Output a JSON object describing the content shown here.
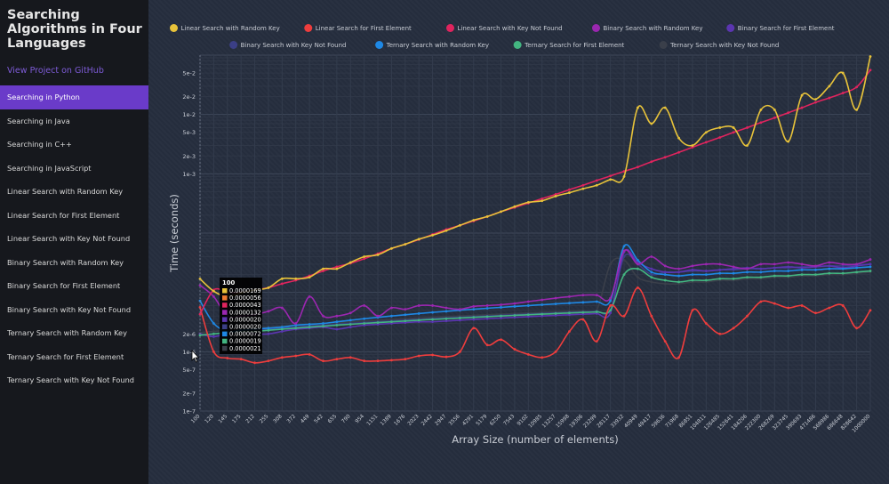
{
  "sidebar": {
    "title": "Searching Algorithms in Four Languages",
    "github_link": "View Project on GitHub",
    "items": [
      {
        "label": "Searching in Python",
        "active": true
      },
      {
        "label": "Searching in Java"
      },
      {
        "label": "Searching in C++"
      },
      {
        "label": "Searching in JavaScript"
      },
      {
        "label": "Linear Search with Random Key"
      },
      {
        "label": "Linear Search for First Element"
      },
      {
        "label": "Linear Search with Key Not Found"
      },
      {
        "label": "Binary Search with Random Key"
      },
      {
        "label": "Binary Search for First Element"
      },
      {
        "label": "Binary Search with Key Not Found"
      },
      {
        "label": "Ternary Search with Random Key"
      },
      {
        "label": "Ternary Search for First Element"
      },
      {
        "label": "Ternary Search with Key Not Found"
      }
    ]
  },
  "chart_data": {
    "type": "line",
    "xlabel": "Array Size (number of elements)",
    "ylabel": "Time (seconds)",
    "y_scale": "log",
    "ylim": [
      1e-07,
      0.1
    ],
    "grid": true,
    "legend_position": "top",
    "categories": [
      "100",
      "120",
      "145",
      "175",
      "212",
      "255",
      "308",
      "372",
      "449",
      "542",
      "655",
      "790",
      "954",
      "1151",
      "1389",
      "1676",
      "2023",
      "2442",
      "2947",
      "3556",
      "4291",
      "5179",
      "6250",
      "7543",
      "9102",
      "10985",
      "13257",
      "15998",
      "19306",
      "23299",
      "28117",
      "33932",
      "40949",
      "49417",
      "59636",
      "71968",
      "86851",
      "104811",
      "126485",
      "152641",
      "184206",
      "222300",
      "268269",
      "323745",
      "390693",
      "471486",
      "568986",
      "686648",
      "828642",
      "1000000"
    ],
    "x_ticks": [
      "100",
      "120",
      "145",
      "175",
      "212",
      "255",
      "308",
      "372",
      "449",
      "542",
      "655",
      "790",
      "954",
      "1151",
      "1389",
      "1676",
      "2023",
      "2442",
      "2947",
      "3556",
      "4291",
      "5179",
      "6250",
      "7543",
      "9102",
      "10985",
      "13257",
      "15998",
      "19306",
      "23299",
      "28117",
      "33932",
      "40949",
      "49417",
      "59636",
      "71968",
      "86851",
      "104811",
      "126485",
      "152641",
      "184206",
      "222300",
      "268269",
      "323745",
      "390693",
      "471486",
      "568986",
      "686648",
      "828642",
      "1000000"
    ],
    "y_ticks": [
      {
        "value": 1e-07,
        "label": "1e-7"
      },
      {
        "value": 2e-07,
        "label": "2e-7"
      },
      {
        "value": 5e-07,
        "label": "5e-7"
      },
      {
        "value": 1e-06,
        "label": "1e-6"
      },
      {
        "value": 2e-06,
        "label": "2e-6"
      },
      {
        "value": 0.001,
        "label": "1e-3"
      },
      {
        "value": 0.002,
        "label": "2e-3"
      },
      {
        "value": 0.005,
        "label": "5e-3"
      },
      {
        "value": 0.01,
        "label": "1e-2"
      },
      {
        "value": 0.02,
        "label": "2e-2"
      },
      {
        "value": 0.05,
        "label": "5e-2"
      }
    ],
    "series": [
      {
        "name": "Linear Search with Random Key",
        "color": "#e8c33a",
        "values": [
          1.69e-05,
          1.05e-05,
          8.5e-06,
          9.8e-06,
          1.1e-05,
          1.2e-05,
          1.7e-05,
          1.7e-05,
          1.8e-05,
          2.5e-05,
          2.5e-05,
          3.2e-05,
          4e-05,
          4.3e-05,
          5.5e-05,
          6.5e-05,
          7.9e-05,
          9.2e-05,
          0.00011,
          0.000135,
          0.000165,
          0.00019,
          0.00023,
          0.00028,
          0.00033,
          0.00035,
          0.00042,
          0.00048,
          0.00056,
          0.00064,
          0.0008,
          0.0009,
          0.013,
          0.007,
          0.013,
          0.004,
          0.003,
          0.005,
          0.006,
          0.006,
          0.003,
          0.012,
          0.012,
          0.0035,
          0.021,
          0.018,
          0.03,
          0.05,
          0.012,
          0.095
        ]
      },
      {
        "name": "Linear Search for First Element",
        "color": "#ee3d3d",
        "values": [
          5.6e-06,
          1e-06,
          7.8e-07,
          7.5e-07,
          6.5e-07,
          7e-07,
          8e-07,
          8.5e-07,
          9e-07,
          7e-07,
          7.5e-07,
          8e-07,
          7e-07,
          7e-07,
          7.2e-07,
          7.5e-07,
          8.5e-07,
          8.8e-07,
          8.2e-07,
          1e-06,
          2.5e-06,
          1.3e-06,
          1.6e-06,
          1.1e-06,
          9e-07,
          8e-07,
          1e-06,
          2.2e-06,
          3.5e-06,
          1.5e-06,
          6e-06,
          4e-06,
          1.2e-05,
          4e-06,
          1.5e-06,
          8e-07,
          5e-06,
          3e-06,
          2e-06,
          2.5e-06,
          4e-06,
          7e-06,
          6.5e-06,
          5.5e-06,
          6e-06,
          4.5e-06,
          5.5e-06,
          6e-06,
          2.5e-06,
          5e-06
        ]
      },
      {
        "name": "Linear Search with Key Not Found",
        "color": "#e0245e",
        "values": [
          4.3e-06,
          1.1e-05,
          1e-05,
          1e-05,
          1.1e-05,
          1.2e-05,
          1.4e-05,
          1.6e-05,
          1.9e-05,
          2.3e-05,
          2.7e-05,
          3.1e-05,
          3.7e-05,
          4.5e-05,
          5.5e-05,
          6.5e-05,
          7.8e-05,
          9.5e-05,
          0.000115,
          0.000135,
          0.00016,
          0.00019,
          0.00023,
          0.00027,
          0.00032,
          0.00038,
          0.00045,
          0.00054,
          0.00064,
          0.00077,
          0.00092,
          0.0011,
          0.0013,
          0.0016,
          0.0019,
          0.0023,
          0.0028,
          0.0034,
          0.0041,
          0.005,
          0.006,
          0.0073,
          0.0088,
          0.0107,
          0.013,
          0.016,
          0.019,
          0.023,
          0.029,
          0.056
        ]
      },
      {
        "name": "Binary Search with Random Key",
        "color": "#9b27b0",
        "values": [
          1.32e-05,
          8.5e-06,
          4e-06,
          4e-06,
          4.2e-06,
          4.8e-06,
          5.5e-06,
          3e-06,
          8.5e-06,
          4e-06,
          4e-06,
          4.5e-06,
          6e-06,
          4e-06,
          5.5e-06,
          5.2e-06,
          6e-06,
          6e-06,
          5.5e-06,
          5.2e-06,
          5.8e-06,
          6e-06,
          6.2e-06,
          6.5e-06,
          7e-06,
          7.5e-06,
          8e-06,
          8.5e-06,
          9e-06,
          9e-06,
          8e-06,
          5e-05,
          3e-05,
          4e-05,
          2.8e-05,
          2.5e-05,
          2.8e-05,
          3e-05,
          3e-05,
          2.7e-05,
          2.5e-05,
          3e-05,
          3e-05,
          3.2e-05,
          3e-05,
          2.8e-05,
          3.2e-05,
          3e-05,
          3e-05,
          3.6e-05
        ]
      },
      {
        "name": "Binary Search for First Element",
        "color": "#5b35b0",
        "values": [
          2e-06,
          1.8e-06,
          2e-06,
          2.2e-06,
          2e-06,
          2e-06,
          2.2e-06,
          2.4e-06,
          2.5e-06,
          2.6e-06,
          2.4e-06,
          2.6e-06,
          2.8e-06,
          2.9e-06,
          3e-06,
          3.1e-06,
          3.2e-06,
          3.2e-06,
          3.3e-06,
          3.4e-06,
          3.5e-06,
          3.6e-06,
          3.7e-06,
          3.8e-06,
          3.9e-06,
          4e-06,
          4.1e-06,
          4.2e-06,
          4.3e-06,
          4.4e-06,
          4.5e-06,
          4.8e-05,
          3.2e-05,
          2.5e-05,
          2.2e-05,
          2.2e-05,
          2.4e-05,
          2.3e-05,
          2.4e-05,
          2.5e-05,
          2.6e-05,
          2.5e-05,
          2.6e-05,
          2.7e-05,
          2.6e-05,
          2.7e-05,
          2.8e-05,
          2.6e-05,
          2.8e-05,
          3e-05
        ]
      },
      {
        "name": "Binary Search with Key Not Found",
        "color": "#3b3f86",
        "values": [
          2e-06,
          1.8e-06,
          2.1e-06,
          2.2e-06,
          2.3e-06,
          2.4e-06,
          2.5e-06,
          2.6e-06,
          2.7e-06,
          2.8e-06,
          2.9e-06,
          3e-06,
          3.1e-06,
          3.2e-06,
          3.3e-06,
          3.4e-06,
          3.5e-06,
          3.6e-06,
          3.7e-06,
          3.8e-06,
          3.9e-06,
          4e-06,
          4.1e-06,
          4.2e-06,
          4.3e-06,
          4.4e-06,
          4.5e-06,
          4.6e-06,
          4.7e-06,
          4.8e-06,
          5e-06,
          4e-05,
          3e-05,
          2e-05,
          2.2e-05,
          2.2e-05,
          2.3e-05,
          2.3e-05,
          2.4e-05,
          2.4e-05,
          2.5e-05,
          2.5e-05,
          2.6e-05,
          2.6e-05,
          2.7e-05,
          2.7e-05,
          2.8e-05,
          2.8e-05,
          2.9e-05,
          3e-05
        ]
      },
      {
        "name": "Ternary Search with Random Key",
        "color": "#1e88e5",
        "values": [
          7.2e-06,
          3e-06,
          2.2e-06,
          2.3e-06,
          2.4e-06,
          2.5e-06,
          2.6e-06,
          2.8e-06,
          2.9e-06,
          3e-06,
          3.2e-06,
          3.4e-06,
          3.6e-06,
          3.8e-06,
          4e-06,
          4.2e-06,
          4.4e-06,
          4.6e-06,
          4.8e-06,
          5e-06,
          5.2e-06,
          5.4e-06,
          5.6e-06,
          5.8e-06,
          6e-06,
          6.2e-06,
          6.4e-06,
          6.6e-06,
          6.8e-06,
          7e-06,
          7.2e-06,
          6e-05,
          3.5e-05,
          2.2e-05,
          2e-05,
          1.9e-05,
          2e-05,
          2e-05,
          2.1e-05,
          2.1e-05,
          2.2e-05,
          2.2e-05,
          2.3e-05,
          2.3e-05,
          2.4e-05,
          2.4e-05,
          2.5e-05,
          2.5e-05,
          2.6e-05,
          2.7e-05
        ]
      },
      {
        "name": "Ternary Search for First Element",
        "color": "#43b581",
        "values": [
          1.9e-06,
          2e-06,
          2.1e-06,
          2.2e-06,
          2.2e-06,
          2.3e-06,
          2.4e-06,
          2.5e-06,
          2.6e-06,
          2.7e-06,
          2.8e-06,
          2.9e-06,
          3e-06,
          3.1e-06,
          3.2e-06,
          3.3e-06,
          3.4e-06,
          3.5e-06,
          3.6e-06,
          3.7e-06,
          3.8e-06,
          3.9e-06,
          4e-06,
          4.1e-06,
          4.2e-06,
          4.3e-06,
          4.4e-06,
          4.5e-06,
          4.6e-06,
          4.7e-06,
          5e-06,
          2e-05,
          2.5e-05,
          1.8e-05,
          1.6e-05,
          1.5e-05,
          1.6e-05,
          1.6e-05,
          1.7e-05,
          1.7e-05,
          1.8e-05,
          1.8e-05,
          1.9e-05,
          1.9e-05,
          2e-05,
          2e-05,
          2.1e-05,
          2.1e-05,
          2.2e-05,
          2.3e-05
        ]
      },
      {
        "name": "Ternary Search with Key Not Found",
        "color": "#3a3f4a",
        "values": [
          2.1e-06,
          2.2e-06,
          2.3e-06,
          2.4e-06,
          2.5e-06,
          2.6e-06,
          2.7e-06,
          2.8e-06,
          2.9e-06,
          3e-06,
          3.1e-06,
          3.2e-06,
          3.3e-06,
          3.4e-06,
          3.5e-06,
          3.6e-06,
          3.7e-06,
          3.8e-06,
          3.9e-06,
          4e-06,
          4.1e-06,
          4.2e-06,
          4.3e-06,
          4.4e-06,
          4.5e-06,
          4.6e-06,
          4.7e-06,
          4.8e-06,
          4.9e-06,
          5e-06,
          3e-05,
          3.5e-05,
          1.8e-05,
          1.5e-05,
          1.4e-05,
          1.4e-05,
          1.5e-05,
          1.5e-05,
          1.6e-05,
          1.6e-05,
          1.7e-05,
          1.7e-05,
          1.8e-05,
          1.8e-05,
          1.9e-05,
          1.9e-05,
          2e-05,
          2e-05,
          2.1e-05,
          2.2e-05
        ]
      }
    ],
    "tooltip": {
      "title": "100",
      "rows": [
        {
          "color": "#e8c33a",
          "value": "0.0000169"
        },
        {
          "color": "#ee7a30",
          "value": "0.0000056"
        },
        {
          "color": "#e0245e",
          "value": "0.0000043"
        },
        {
          "color": "#9b27b0",
          "value": "0.0000132"
        },
        {
          "color": "#5b35b0",
          "value": "0.0000020"
        },
        {
          "color": "#3b3f86",
          "value": "0.0000020"
        },
        {
          "color": "#1e88e5",
          "value": "0.0000072"
        },
        {
          "color": "#43b581",
          "value": "0.0000019"
        },
        {
          "color": "#3a3f4a",
          "value": "0.0000021"
        }
      ]
    }
  }
}
